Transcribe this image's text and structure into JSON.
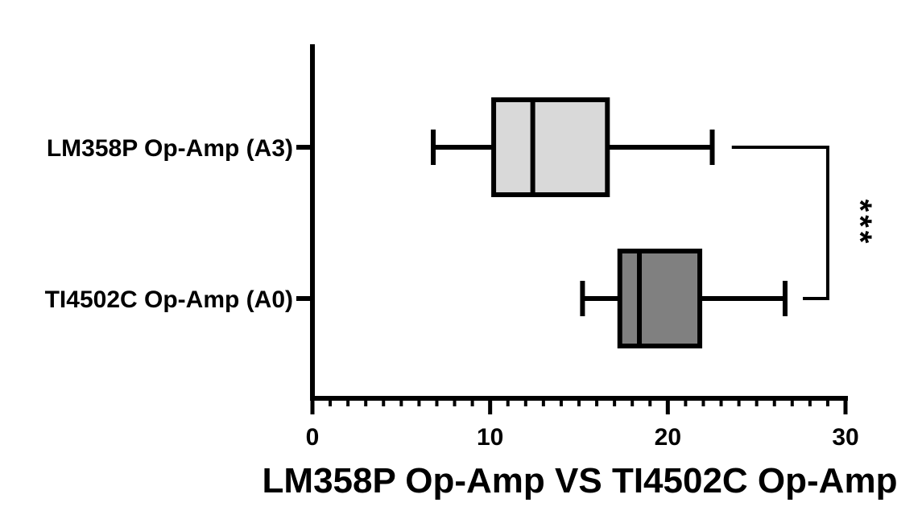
{
  "chart_data": {
    "type": "boxplot",
    "orientation": "horizontal",
    "xlabel": "LM358P Op-Amp VS TI4502C Op-Amp",
    "xlim": [
      0,
      30
    ],
    "x_ticks": [
      0,
      10,
      20,
      30
    ],
    "x_minor_tick_step": 1,
    "grid": false,
    "series": [
      {
        "name": "LM358P Op-Amp (A3)",
        "min": 6.8,
        "q1": 10.2,
        "median": 12.4,
        "q3": 16.6,
        "max": 22.5,
        "color": "#d9d9d9"
      },
      {
        "name": "TI4502C Op-Amp (A0)",
        "min": 15.2,
        "q1": 17.3,
        "median": 18.4,
        "q3": 21.8,
        "max": 26.6,
        "color": "#808080"
      }
    ],
    "annotation": {
      "text": "***",
      "between": [
        "LM358P Op-Amp (A3)",
        "TI4502C Op-Amp (A0)"
      ],
      "bracket_x_start": [
        23.6,
        27.6
      ],
      "bracket_x": 29.0
    }
  }
}
